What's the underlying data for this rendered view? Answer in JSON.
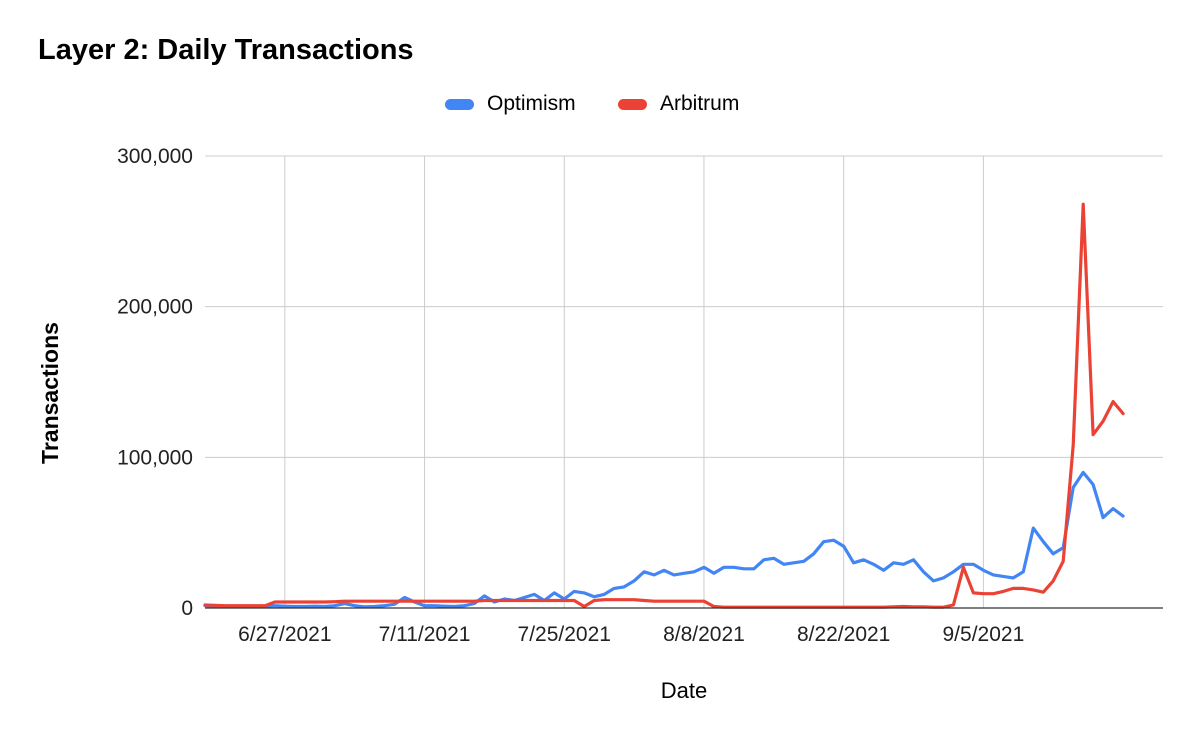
{
  "chart_data": {
    "type": "line",
    "title": "Layer 2: Daily Transactions",
    "xlabel": "Date",
    "ylabel": "Transactions",
    "ylim": [
      0,
      300000
    ],
    "yticks": [
      0,
      100000,
      200000,
      300000
    ],
    "yticks_labels": [
      "0",
      "100,000",
      "200,000",
      "300,000"
    ],
    "xticks_labels": [
      "6/27/2021",
      "7/11/2021",
      "7/25/2021",
      "8/8/2021",
      "8/22/2021",
      "9/5/2021"
    ],
    "x_range": [
      "6/19/2021",
      "9/23/2021"
    ],
    "grid": true,
    "legend_position": "top",
    "series": [
      {
        "name": "Optimism",
        "color": "#4285f4",
        "points": [
          [
            "6/19/2021",
            1500
          ],
          [
            "6/20/2021",
            1000
          ],
          [
            "6/21/2021",
            800
          ],
          [
            "6/22/2021",
            800
          ],
          [
            "6/23/2021",
            800
          ],
          [
            "6/24/2021",
            1000
          ],
          [
            "6/25/2021",
            1200
          ],
          [
            "6/26/2021",
            1500
          ],
          [
            "6/27/2021",
            1200
          ],
          [
            "6/28/2021",
            1000
          ],
          [
            "6/29/2021",
            1000
          ],
          [
            "6/30/2021",
            1200
          ],
          [
            "7/1/2021",
            1000
          ],
          [
            "7/2/2021",
            1500
          ],
          [
            "7/3/2021",
            3000
          ],
          [
            "7/4/2021",
            1500
          ],
          [
            "7/5/2021",
            800
          ],
          [
            "7/6/2021",
            1000
          ],
          [
            "7/7/2021",
            1500
          ],
          [
            "7/8/2021",
            2500
          ],
          [
            "7/9/2021",
            7000
          ],
          [
            "7/10/2021",
            4000
          ],
          [
            "7/11/2021",
            1500
          ],
          [
            "7/12/2021",
            1500
          ],
          [
            "7/13/2021",
            1200
          ],
          [
            "7/14/2021",
            1000
          ],
          [
            "7/15/2021",
            1500
          ],
          [
            "7/16/2021",
            3000
          ],
          [
            "7/17/2021",
            8000
          ],
          [
            "7/18/2021",
            4000
          ],
          [
            "7/19/2021",
            6000
          ],
          [
            "7/20/2021",
            5000
          ],
          [
            "7/21/2021",
            7000
          ],
          [
            "7/22/2021",
            9000
          ],
          [
            "7/23/2021",
            5000
          ],
          [
            "7/24/2021",
            10000
          ],
          [
            "7/25/2021",
            6000
          ],
          [
            "7/26/2021",
            11000
          ],
          [
            "7/27/2021",
            10000
          ],
          [
            "7/28/2021",
            7500
          ],
          [
            "7/29/2021",
            9000
          ],
          [
            "7/30/2021",
            13000
          ],
          [
            "7/31/2021",
            14000
          ],
          [
            "8/1/2021",
            18000
          ],
          [
            "8/2/2021",
            24000
          ],
          [
            "8/3/2021",
            22000
          ],
          [
            "8/4/2021",
            25000
          ],
          [
            "8/5/2021",
            22000
          ],
          [
            "8/6/2021",
            23000
          ],
          [
            "8/7/2021",
            24000
          ],
          [
            "8/8/2021",
            27000
          ],
          [
            "8/9/2021",
            23000
          ],
          [
            "8/10/2021",
            27000
          ],
          [
            "8/11/2021",
            27000
          ],
          [
            "8/12/2021",
            26000
          ],
          [
            "8/13/2021",
            26000
          ],
          [
            "8/14/2021",
            32000
          ],
          [
            "8/15/2021",
            33000
          ],
          [
            "8/16/2021",
            29000
          ],
          [
            "8/17/2021",
            30000
          ],
          [
            "8/18/2021",
            31000
          ],
          [
            "8/19/2021",
            36000
          ],
          [
            "8/20/2021",
            44000
          ],
          [
            "8/21/2021",
            45000
          ],
          [
            "8/22/2021",
            41000
          ],
          [
            "8/23/2021",
            30000
          ],
          [
            "8/24/2021",
            32000
          ],
          [
            "8/25/2021",
            29000
          ],
          [
            "8/26/2021",
            25000
          ],
          [
            "8/27/2021",
            30000
          ],
          [
            "8/28/2021",
            29000
          ],
          [
            "8/29/2021",
            32000
          ],
          [
            "8/30/2021",
            24000
          ],
          [
            "8/31/2021",
            18000
          ],
          [
            "9/1/2021",
            20000
          ],
          [
            "9/2/2021",
            24000
          ],
          [
            "9/3/2021",
            29000
          ],
          [
            "9/4/2021",
            29000
          ],
          [
            "9/5/2021",
            25000
          ],
          [
            "9/6/2021",
            22000
          ],
          [
            "9/7/2021",
            21000
          ],
          [
            "9/8/2021",
            20000
          ],
          [
            "9/9/2021",
            24000
          ],
          [
            "9/10/2021",
            53000
          ],
          [
            "9/11/2021",
            44000
          ],
          [
            "9/12/2021",
            36000
          ],
          [
            "9/13/2021",
            40000
          ],
          [
            "9/14/2021",
            80000
          ],
          [
            "9/15/2021",
            90000
          ],
          [
            "9/16/2021",
            82000
          ],
          [
            "9/17/2021",
            60000
          ],
          [
            "9/18/2021",
            66000
          ],
          [
            "9/19/2021",
            61000
          ]
        ]
      },
      {
        "name": "Arbitrum",
        "color": "#ea4335",
        "points": [
          [
            "6/19/2021",
            2000
          ],
          [
            "6/20/2021",
            1800
          ],
          [
            "6/21/2021",
            1500
          ],
          [
            "6/22/2021",
            1500
          ],
          [
            "6/23/2021",
            1500
          ],
          [
            "6/24/2021",
            1500
          ],
          [
            "6/25/2021",
            1500
          ],
          [
            "6/26/2021",
            4000
          ],
          [
            "6/27/2021",
            4000
          ],
          [
            "6/28/2021",
            4000
          ],
          [
            "6/29/2021",
            4000
          ],
          [
            "6/30/2021",
            4000
          ],
          [
            "7/1/2021",
            4000
          ],
          [
            "7/2/2021",
            4200
          ],
          [
            "7/3/2021",
            4500
          ],
          [
            "7/4/2021",
            4500
          ],
          [
            "7/5/2021",
            4500
          ],
          [
            "7/6/2021",
            4500
          ],
          [
            "7/7/2021",
            4500
          ],
          [
            "7/8/2021",
            4500
          ],
          [
            "7/9/2021",
            4500
          ],
          [
            "7/10/2021",
            4500
          ],
          [
            "7/11/2021",
            4500
          ],
          [
            "7/12/2021",
            4500
          ],
          [
            "7/13/2021",
            4500
          ],
          [
            "7/14/2021",
            4500
          ],
          [
            "7/15/2021",
            4500
          ],
          [
            "7/16/2021",
            4500
          ],
          [
            "7/17/2021",
            5000
          ],
          [
            "7/18/2021",
            5000
          ],
          [
            "7/19/2021",
            5000
          ],
          [
            "7/20/2021",
            5000
          ],
          [
            "7/21/2021",
            5000
          ],
          [
            "7/22/2021",
            5000
          ],
          [
            "7/23/2021",
            5000
          ],
          [
            "7/24/2021",
            5000
          ],
          [
            "7/25/2021",
            5000
          ],
          [
            "7/26/2021",
            5000
          ],
          [
            "7/27/2021",
            1000
          ],
          [
            "7/28/2021",
            5000
          ],
          [
            "7/29/2021",
            5500
          ],
          [
            "7/30/2021",
            5500
          ],
          [
            "7/31/2021",
            5500
          ],
          [
            "8/1/2021",
            5500
          ],
          [
            "8/2/2021",
            5000
          ],
          [
            "8/3/2021",
            4500
          ],
          [
            "8/4/2021",
            4500
          ],
          [
            "8/5/2021",
            4500
          ],
          [
            "8/6/2021",
            4500
          ],
          [
            "8/7/2021",
            4500
          ],
          [
            "8/8/2021",
            4500
          ],
          [
            "8/9/2021",
            1000
          ],
          [
            "8/10/2021",
            500
          ],
          [
            "8/11/2021",
            500
          ],
          [
            "8/12/2021",
            500
          ],
          [
            "8/13/2021",
            500
          ],
          [
            "8/14/2021",
            500
          ],
          [
            "8/15/2021",
            500
          ],
          [
            "8/16/2021",
            500
          ],
          [
            "8/17/2021",
            500
          ],
          [
            "8/18/2021",
            500
          ],
          [
            "8/19/2021",
            500
          ],
          [
            "8/20/2021",
            500
          ],
          [
            "8/21/2021",
            500
          ],
          [
            "8/22/2021",
            500
          ],
          [
            "8/23/2021",
            500
          ],
          [
            "8/24/2021",
            500
          ],
          [
            "8/25/2021",
            500
          ],
          [
            "8/26/2021",
            500
          ],
          [
            "8/27/2021",
            800
          ],
          [
            "8/28/2021",
            1000
          ],
          [
            "8/29/2021",
            800
          ],
          [
            "8/30/2021",
            800
          ],
          [
            "8/31/2021",
            500
          ],
          [
            "9/1/2021",
            500
          ],
          [
            "9/2/2021",
            2000
          ],
          [
            "9/3/2021",
            27000
          ],
          [
            "9/4/2021",
            10000
          ],
          [
            "9/5/2021",
            9500
          ],
          [
            "9/6/2021",
            9500
          ],
          [
            "9/7/2021",
            11000
          ],
          [
            "9/8/2021",
            13000
          ],
          [
            "9/9/2021",
            13000
          ],
          [
            "9/10/2021",
            12000
          ],
          [
            "9/11/2021",
            10500
          ],
          [
            "9/12/2021",
            18000
          ],
          [
            "9/13/2021",
            31000
          ],
          [
            "9/14/2021",
            108000
          ],
          [
            "9/15/2021",
            268000
          ],
          [
            "9/16/2021",
            115000
          ],
          [
            "9/17/2021",
            124000
          ],
          [
            "9/18/2021",
            137000
          ],
          [
            "9/19/2021",
            129000
          ]
        ]
      }
    ]
  }
}
